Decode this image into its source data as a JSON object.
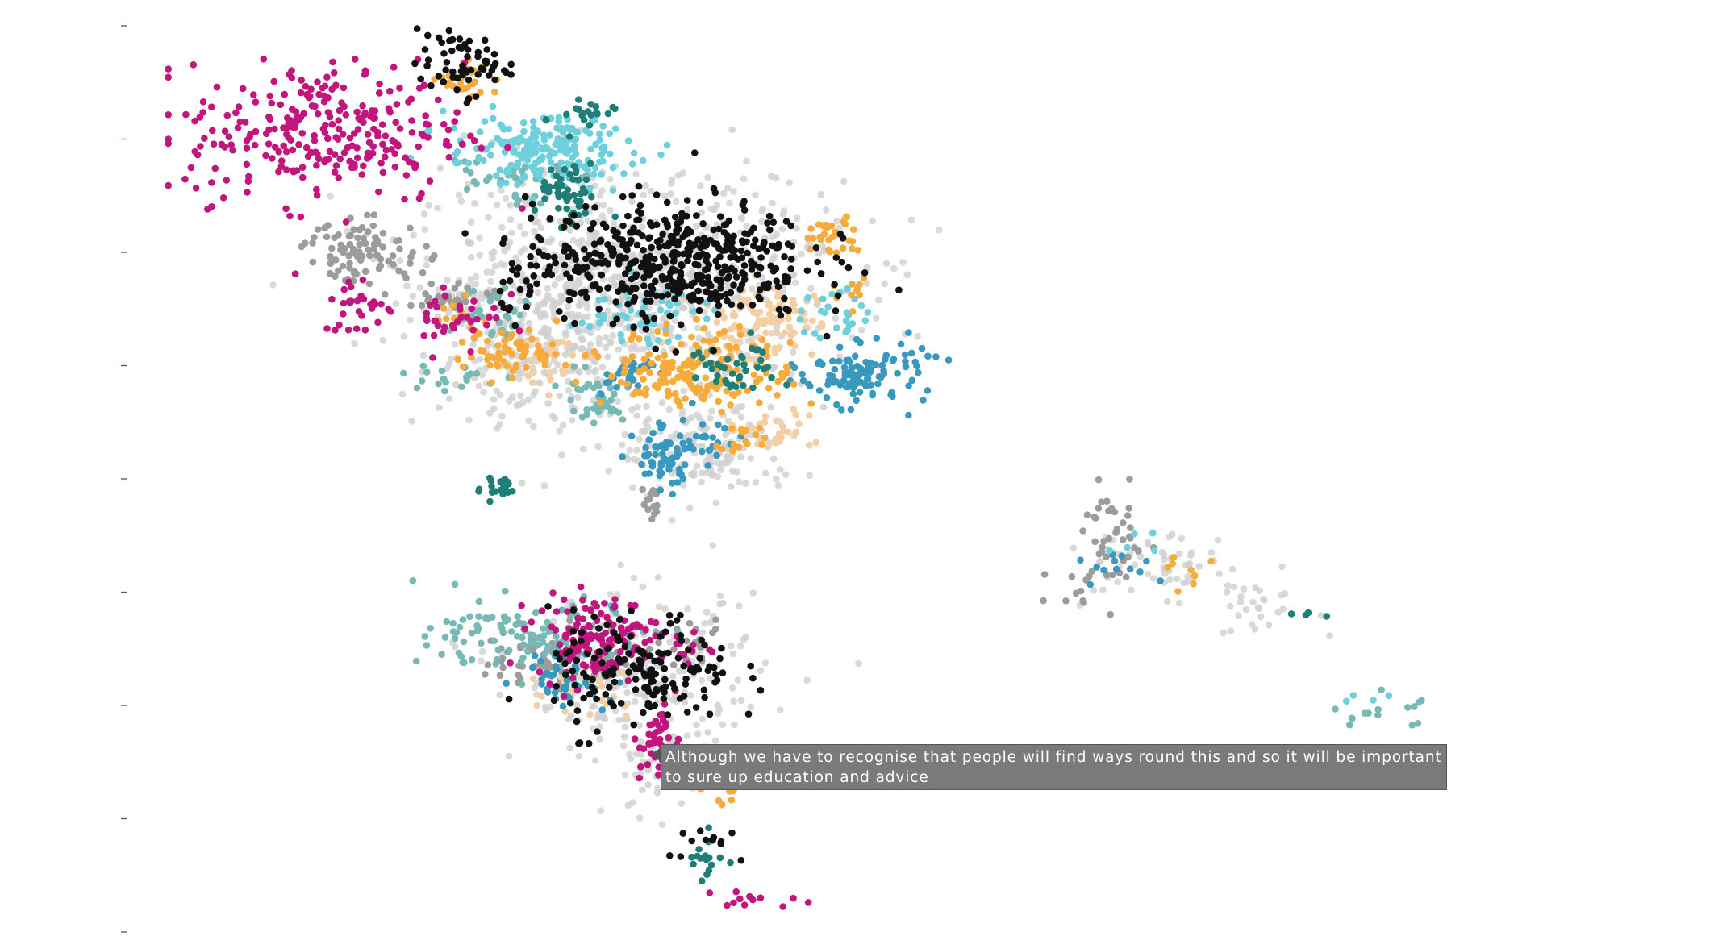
{
  "colors": {
    "magenta": "#c2157e",
    "black": "#111111",
    "cyan": "#6dd0dc",
    "teal": "#1f7f78",
    "light_teal": "#78b9b6",
    "orange": "#f6ab3b",
    "peach": "#f5cea2",
    "blue": "#3898bd",
    "dark_gray": "#9c9c9c",
    "light_gray": "#cfcfcf"
  },
  "tooltip": {
    "text": "Although we have to recognise that people will find ways round this and so it will be important to sure up education and advice"
  },
  "chart_data": {
    "type": "scatter",
    "title": "",
    "xlabel": "",
    "ylabel": "",
    "grid": false,
    "legend": "none",
    "y_ticks": [
      "",
      "",
      "",
      "",
      "",
      "",
      "",
      "",
      ""
    ],
    "xlim": [
      0,
      100
    ],
    "ylim": [
      0,
      100
    ],
    "series": [
      {
        "color_key": "magenta",
        "clusters": [
          [
            11.7,
            88.0,
            9,
            7,
            280
          ],
          [
            14.2,
            69.0,
            2.5,
            3,
            30
          ],
          [
            21.0,
            68.0,
            3,
            4,
            35
          ],
          [
            31.0,
            32.5,
            4,
            4,
            140
          ],
          [
            35.5,
            20.5,
            1.3,
            4,
            50
          ],
          [
            37.0,
            31.5,
            2,
            2,
            15
          ],
          [
            42.0,
            3.5,
            3,
            1,
            12
          ]
        ]
      },
      {
        "color_key": "black",
        "clusters": [
          [
            21.5,
            95.5,
            3,
            3,
            60
          ],
          [
            36.2,
            74.0,
            9,
            6,
            480
          ],
          [
            34.2,
            28.5,
            6,
            6,
            160
          ],
          [
            25.8,
            71.0,
            1.5,
            3,
            18
          ],
          [
            39.5,
            9.5,
            3,
            2.5,
            12
          ]
        ]
      },
      {
        "color_key": "cyan",
        "clusters": [
          [
            27.0,
            86.0,
            6,
            3.5,
            200
          ],
          [
            34.0,
            68.5,
            4,
            3,
            60
          ],
          [
            48.0,
            68.0,
            2,
            3,
            25
          ],
          [
            69.5,
            42.5,
            3,
            2.5,
            6
          ],
          [
            85.5,
            25.5,
            2,
            1,
            4
          ]
        ]
      },
      {
        "color_key": "teal",
        "clusters": [
          [
            29.0,
            81.0,
            2,
            3,
            50
          ],
          [
            24.0,
            49.0,
            1.2,
            1.5,
            20
          ],
          [
            41.0,
            62.0,
            3,
            3,
            40
          ],
          [
            30.0,
            89.5,
            2,
            2,
            20
          ],
          [
            38.5,
            8.0,
            1.3,
            3,
            18
          ],
          [
            81.5,
            35.0,
            1,
            0.5,
            4
          ]
        ]
      },
      {
        "color_key": "light_teal",
        "clusters": [
          [
            24.5,
            83.5,
            4,
            3,
            40
          ],
          [
            23.5,
            68.5,
            3,
            3,
            30
          ],
          [
            20.5,
            61.0,
            3,
            1.5,
            20
          ],
          [
            30.5,
            58.5,
            3,
            3,
            40
          ],
          [
            27.0,
            32.5,
            7,
            3.5,
            120
          ],
          [
            86.5,
            24.0,
            3,
            2,
            15
          ]
        ]
      },
      {
        "color_key": "orange",
        "clusters": [
          [
            22.0,
            94.0,
            2,
            2,
            25
          ],
          [
            25.0,
            64.0,
            3,
            2.5,
            60
          ],
          [
            38.5,
            62.0,
            6,
            4,
            180
          ],
          [
            47.5,
            76.5,
            2,
            2,
            30
          ],
          [
            49.5,
            71.0,
            1.5,
            2,
            10
          ],
          [
            21.0,
            67.5,
            1.5,
            2,
            14
          ],
          [
            41.5,
            54.5,
            2,
            2,
            15
          ],
          [
            73.5,
            39.5,
            1.5,
            2,
            8
          ],
          [
            39.5,
            15.0,
            1.5,
            2,
            10
          ]
        ]
      },
      {
        "color_key": "peach",
        "clusters": [
          [
            42.5,
            67.0,
            4,
            4,
            80
          ],
          [
            43.0,
            55.0,
            3,
            2,
            30
          ],
          [
            27.5,
            63.0,
            3,
            2.5,
            30
          ],
          [
            44.5,
            69.0,
            3,
            2,
            20
          ],
          [
            31.0,
            27.0,
            3,
            3,
            20
          ]
        ]
      },
      {
        "color_key": "blue",
        "clusters": [
          [
            50.0,
            61.5,
            4,
            3,
            110
          ],
          [
            35.5,
            52.0,
            2,
            3,
            50
          ],
          [
            38.5,
            54.0,
            3,
            3,
            30
          ],
          [
            33.0,
            61.0,
            2,
            2,
            25
          ],
          [
            29.0,
            28.5,
            3,
            3,
            50
          ],
          [
            68.0,
            40.5,
            2.5,
            1.5,
            12
          ]
        ]
      },
      {
        "color_key": "dark_gray",
        "clusters": [
          [
            14.5,
            75.0,
            4,
            3,
            90
          ],
          [
            21.0,
            70.0,
            3,
            1.5,
            30
          ],
          [
            28.0,
            30.0,
            5,
            3,
            60
          ],
          [
            37.5,
            31.0,
            2.5,
            2.5,
            25
          ],
          [
            68.0,
            43.0,
            2,
            5,
            40
          ],
          [
            65.0,
            37.5,
            2,
            2,
            10
          ],
          [
            35.0,
            47.0,
            1,
            2,
            15
          ]
        ]
      },
      {
        "color_key": "light_gray",
        "clusters": [
          [
            33.0,
            72.0,
            14,
            10,
            750
          ],
          [
            27.0,
            64.0,
            7,
            8,
            200
          ],
          [
            39.0,
            53.0,
            6,
            5,
            150
          ],
          [
            34.0,
            28.0,
            8,
            8,
            220
          ],
          [
            36.0,
            18.0,
            4,
            5,
            60
          ],
          [
            70.0,
            40.0,
            5,
            4,
            60
          ],
          [
            78.0,
            36.0,
            4,
            3,
            30
          ]
        ]
      }
    ]
  }
}
